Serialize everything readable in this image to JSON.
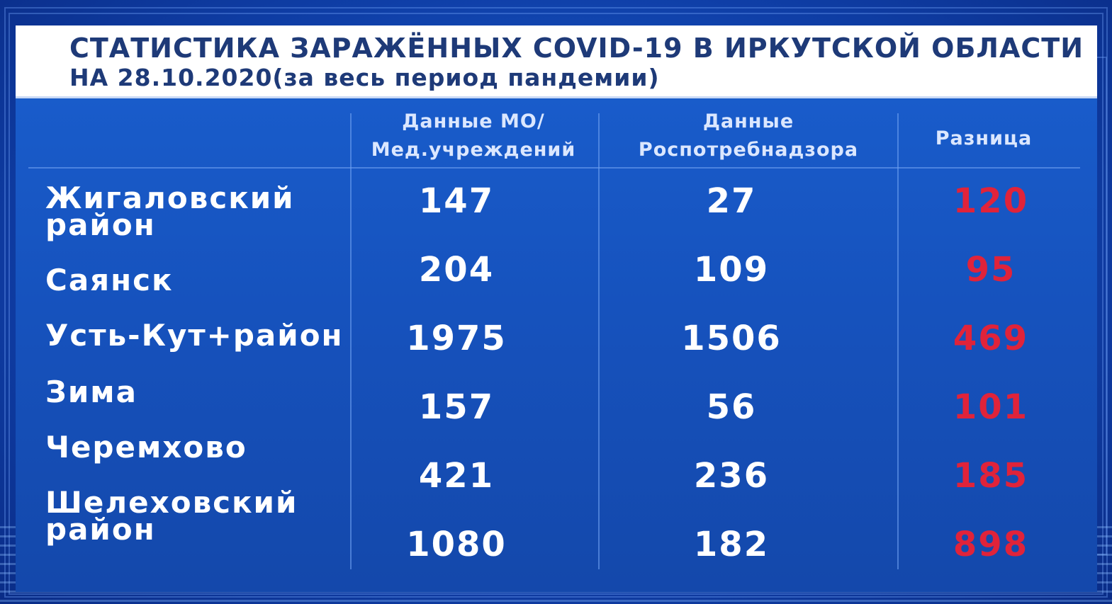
{
  "title": {
    "line1": "СТАТИСТИКА ЗАРАЖЁННЫХ COVID-19 В ИРКУТСКОЙ ОБЛАСТИ",
    "line2": "НА 28.10.2020(за весь период пандемии)"
  },
  "columns": {
    "mo_line1": "Данные МО/",
    "mo_line2": "Мед.учреждений",
    "rpn_line1": "Данные",
    "rpn_line2": "Роспотребнадзора",
    "diff": "Разница"
  },
  "labels": {
    "r1_line1": "Жигаловский",
    "r1_line2": "район",
    "r2": "Саянск",
    "r3": "Усть-Кут+район",
    "r4": "Зима",
    "r5": "Черемхово",
    "r6_line1": "Шелеховский",
    "r6_line2": "район"
  },
  "rows": [
    {
      "mo": "147",
      "rpn": "27",
      "diff": "120"
    },
    {
      "mo": "204",
      "rpn": "109",
      "diff": "95"
    },
    {
      "mo": "1975",
      "rpn": "1506",
      "diff": "469"
    },
    {
      "mo": "157",
      "rpn": "56",
      "diff": "101"
    },
    {
      "mo": "421",
      "rpn": "236",
      "diff": "185"
    },
    {
      "mo": "1080",
      "rpn": "182",
      "diff": "898"
    }
  ],
  "colors": {
    "background": "#1652bd",
    "title_bg": "#ffffff",
    "title_text": "#1e3a78",
    "text": "#ffffff",
    "difference": "#e0233a"
  }
}
